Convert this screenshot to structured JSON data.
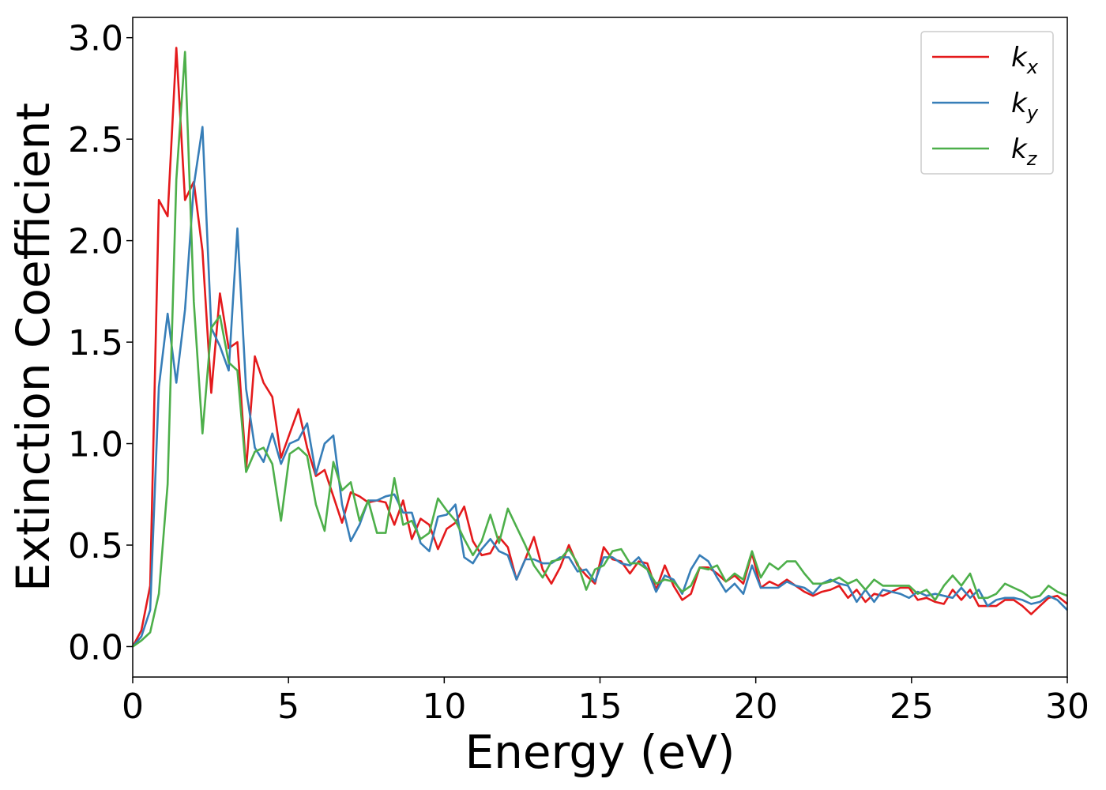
{
  "chart_data": {
    "type": "line",
    "xlabel": "Energy (eV)",
    "ylabel": "Extinction Coefficient",
    "xlim": [
      0,
      30
    ],
    "ylim": [
      -0.15,
      3.1
    ],
    "xticks": [
      "0",
      "5",
      "10",
      "15",
      "20",
      "25",
      "30"
    ],
    "yticks": [
      "0.0",
      "0.5",
      "1.0",
      "1.5",
      "2.0",
      "2.5",
      "3.0"
    ],
    "grid": false,
    "legend_position": "top-right",
    "x": [
      0.0,
      0.28,
      0.56,
      0.84,
      1.12,
      1.4,
      1.68,
      1.96,
      2.24,
      2.52,
      2.8,
      3.08,
      3.36,
      3.64,
      3.92,
      4.2,
      4.48,
      4.76,
      5.04,
      5.32,
      5.6,
      5.88,
      6.16,
      6.44,
      6.72,
      7.0,
      7.28,
      7.56,
      7.84,
      8.12,
      8.4,
      8.68,
      8.96,
      9.24,
      9.52,
      9.8,
      10.08,
      10.36,
      10.64,
      10.92,
      11.2,
      11.48,
      11.76,
      12.04,
      12.32,
      12.6,
      12.88,
      13.16,
      13.44,
      13.72,
      14.0,
      14.28,
      14.56,
      14.84,
      15.12,
      15.4,
      15.68,
      15.96,
      16.24,
      16.52,
      16.8,
      17.08,
      17.36,
      17.64,
      17.92,
      18.2,
      18.48,
      18.76,
      19.04,
      19.32,
      19.6,
      19.88,
      20.16,
      20.44,
      20.72,
      21.0,
      21.28,
      21.56,
      21.84,
      22.12,
      22.4,
      22.68,
      22.96,
      23.24,
      23.52,
      23.8,
      24.08,
      24.36,
      24.64,
      24.92,
      25.2,
      25.48,
      25.76,
      26.04,
      26.32,
      26.6,
      26.88,
      27.16,
      27.44,
      27.72,
      28.0,
      28.28,
      28.56,
      28.84,
      29.12,
      29.4,
      29.68,
      30.0
    ],
    "series": [
      {
        "name": "k_x",
        "color": "#e41a1c",
        "values": [
          0.0,
          0.08,
          0.3,
          2.2,
          2.12,
          2.95,
          2.2,
          2.29,
          1.95,
          1.25,
          1.74,
          1.47,
          1.5,
          0.87,
          1.43,
          1.3,
          1.23,
          0.93,
          1.05,
          1.17,
          0.98,
          0.84,
          0.87,
          0.74,
          0.61,
          0.76,
          0.74,
          0.71,
          0.72,
          0.71,
          0.6,
          0.72,
          0.53,
          0.63,
          0.6,
          0.48,
          0.58,
          0.61,
          0.69,
          0.52,
          0.45,
          0.46,
          0.54,
          0.49,
          0.33,
          0.43,
          0.54,
          0.38,
          0.31,
          0.39,
          0.5,
          0.4,
          0.35,
          0.31,
          0.49,
          0.43,
          0.42,
          0.36,
          0.42,
          0.41,
          0.28,
          0.4,
          0.3,
          0.23,
          0.26,
          0.39,
          0.39,
          0.36,
          0.32,
          0.35,
          0.31,
          0.46,
          0.29,
          0.32,
          0.3,
          0.33,
          0.3,
          0.27,
          0.25,
          0.27,
          0.28,
          0.3,
          0.24,
          0.28,
          0.22,
          0.26,
          0.25,
          0.27,
          0.29,
          0.29,
          0.23,
          0.24,
          0.22,
          0.21,
          0.28,
          0.23,
          0.28,
          0.2,
          0.2,
          0.2,
          0.23,
          0.23,
          0.2,
          0.16,
          0.2,
          0.24,
          0.25,
          0.21
        ]
      },
      {
        "name": "k_y",
        "color": "#377eb8",
        "values": [
          0.0,
          0.05,
          0.18,
          1.28,
          1.64,
          1.3,
          1.66,
          2.27,
          2.56,
          1.57,
          1.48,
          1.36,
          2.06,
          1.27,
          0.98,
          0.91,
          1.05,
          0.9,
          1.0,
          1.02,
          1.1,
          0.85,
          1.0,
          1.04,
          0.7,
          0.52,
          0.6,
          0.72,
          0.72,
          0.74,
          0.75,
          0.66,
          0.66,
          0.51,
          0.47,
          0.64,
          0.65,
          0.7,
          0.44,
          0.41,
          0.48,
          0.53,
          0.47,
          0.45,
          0.33,
          0.43,
          0.43,
          0.41,
          0.41,
          0.44,
          0.44,
          0.37,
          0.38,
          0.32,
          0.44,
          0.44,
          0.41,
          0.4,
          0.44,
          0.38,
          0.27,
          0.35,
          0.33,
          0.26,
          0.38,
          0.45,
          0.42,
          0.34,
          0.27,
          0.31,
          0.26,
          0.4,
          0.29,
          0.29,
          0.29,
          0.32,
          0.3,
          0.29,
          0.26,
          0.31,
          0.33,
          0.31,
          0.3,
          0.22,
          0.28,
          0.22,
          0.28,
          0.27,
          0.26,
          0.24,
          0.27,
          0.25,
          0.26,
          0.25,
          0.24,
          0.29,
          0.24,
          0.28,
          0.2,
          0.23,
          0.24,
          0.24,
          0.23,
          0.21,
          0.22,
          0.25,
          0.23,
          0.18
        ]
      },
      {
        "name": "k_z",
        "color": "#4daf4a",
        "values": [
          0.0,
          0.03,
          0.07,
          0.26,
          0.8,
          2.3,
          2.93,
          1.7,
          1.05,
          1.57,
          1.63,
          1.4,
          1.36,
          0.86,
          0.96,
          0.98,
          0.9,
          0.62,
          0.95,
          0.98,
          0.94,
          0.7,
          0.57,
          0.91,
          0.77,
          0.81,
          0.62,
          0.72,
          0.56,
          0.56,
          0.83,
          0.6,
          0.62,
          0.53,
          0.56,
          0.73,
          0.67,
          0.62,
          0.53,
          0.45,
          0.52,
          0.65,
          0.51,
          0.68,
          0.59,
          0.5,
          0.4,
          0.34,
          0.42,
          0.43,
          0.48,
          0.41,
          0.28,
          0.38,
          0.4,
          0.47,
          0.48,
          0.41,
          0.41,
          0.38,
          0.31,
          0.33,
          0.32,
          0.27,
          0.3,
          0.39,
          0.38,
          0.4,
          0.32,
          0.36,
          0.33,
          0.47,
          0.34,
          0.41,
          0.38,
          0.42,
          0.42,
          0.36,
          0.31,
          0.31,
          0.32,
          0.34,
          0.31,
          0.33,
          0.28,
          0.33,
          0.3,
          0.3,
          0.3,
          0.3,
          0.26,
          0.28,
          0.23,
          0.3,
          0.35,
          0.3,
          0.36,
          0.24,
          0.24,
          0.26,
          0.31,
          0.29,
          0.27,
          0.24,
          0.25,
          0.3,
          0.27,
          0.25
        ]
      }
    ]
  }
}
